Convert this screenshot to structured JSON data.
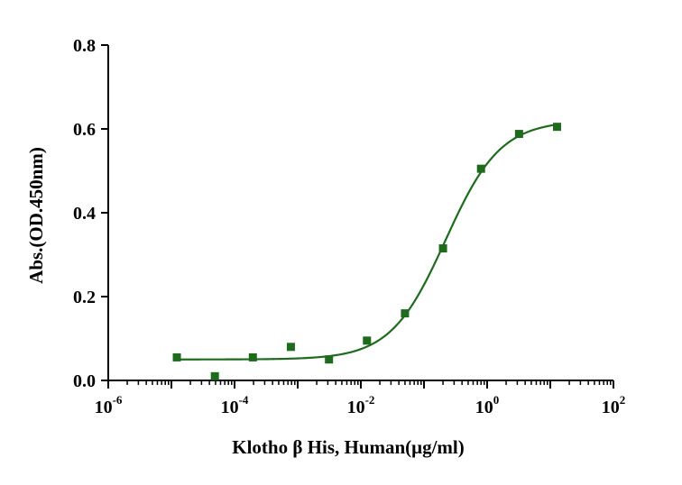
{
  "chart_data": {
    "type": "scatter",
    "title": "",
    "xlabel": "Klotho β His, Human(μg/ml)",
    "ylabel": "Abs.(OD.450nm)",
    "x_scale": "log10",
    "xlim": [
      1e-06,
      100
    ],
    "ylim": [
      0,
      0.8
    ],
    "x_ticks": [
      {
        "value": 1e-06,
        "base": "10",
        "exp": "-6"
      },
      {
        "value": 0.0001,
        "base": "10",
        "exp": "-4"
      },
      {
        "value": 0.01,
        "base": "10",
        "exp": "-2"
      },
      {
        "value": 1,
        "base": "10",
        "exp": "0"
      },
      {
        "value": 100,
        "base": "10",
        "exp": "2"
      }
    ],
    "y_ticks": [
      {
        "value": 0.0,
        "label": "0.0"
      },
      {
        "value": 0.2,
        "label": "0.2"
      },
      {
        "value": 0.4,
        "label": "0.4"
      },
      {
        "value": 0.6,
        "label": "0.6"
      },
      {
        "value": 0.8,
        "label": "0.8"
      }
    ],
    "grid": false,
    "colors": {
      "series": "#1e6b1e",
      "axis": "#000000"
    },
    "series": [
      {
        "marker": "square",
        "x": [
          1.22e-05,
          4.88e-05,
          0.000195,
          0.00078,
          0.00313,
          0.0125,
          0.05,
          0.2,
          0.8,
          3.2,
          12.8
        ],
        "y": [
          0.055,
          0.01,
          0.055,
          0.08,
          0.05,
          0.095,
          0.16,
          0.315,
          0.505,
          0.588,
          0.605
        ]
      }
    ],
    "fit_curve": {
      "model": "4PL",
      "bottom": 0.05,
      "top": 0.62,
      "ec50": 0.22,
      "hill": 1.0
    }
  }
}
